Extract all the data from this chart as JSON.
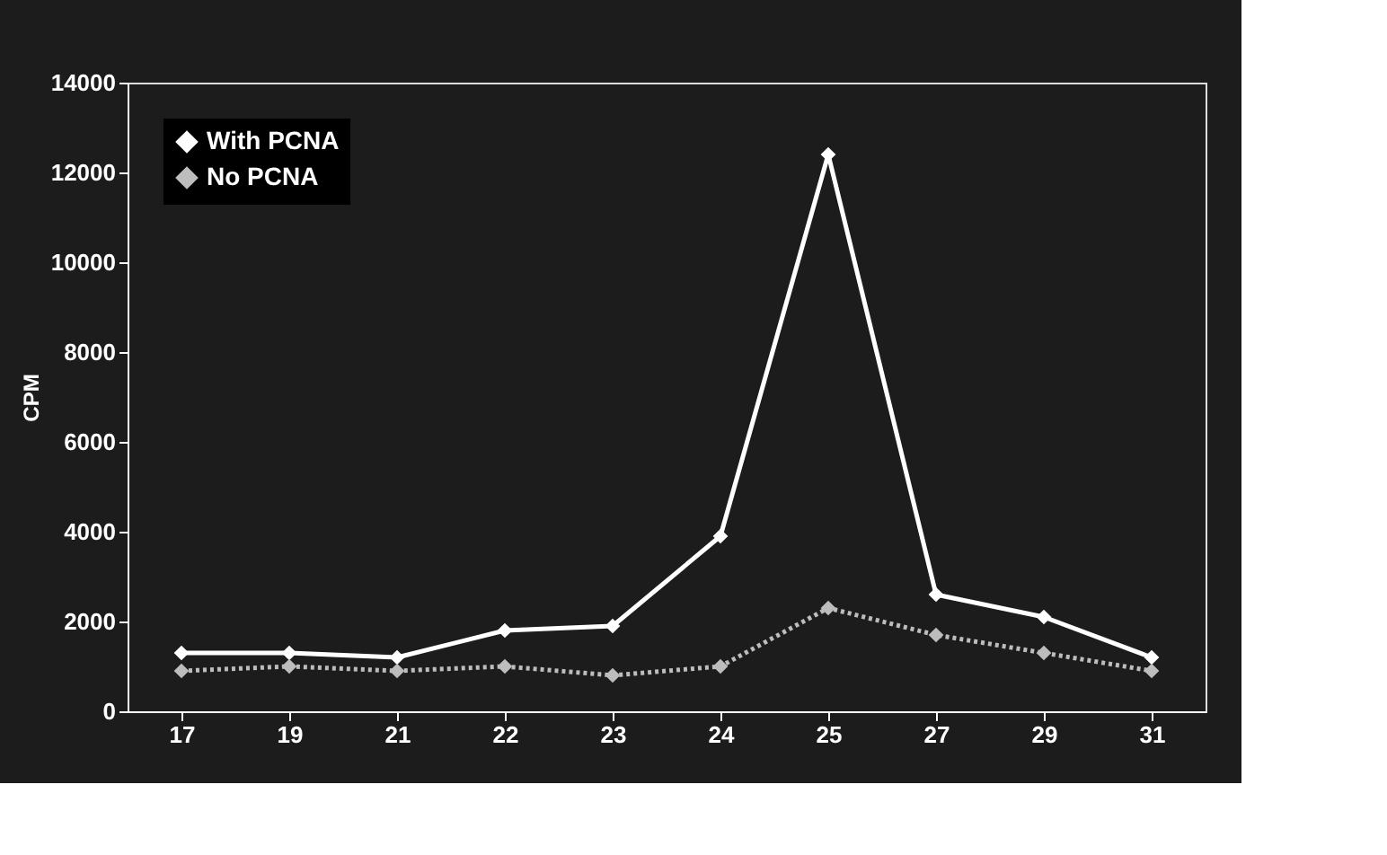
{
  "chart_data": {
    "type": "line",
    "ylabel": "CPM",
    "categories": [
      "17",
      "19",
      "21",
      "22",
      "23",
      "24",
      "25",
      "27",
      "29",
      "31"
    ],
    "series": [
      {
        "name": "With PCNA",
        "color": "#ffffff",
        "line_style": "solid",
        "values": [
          1300,
          1300,
          1200,
          1800,
          1900,
          3900,
          12400,
          2600,
          2100,
          1200
        ]
      },
      {
        "name": "No PCNA",
        "color": "#bdbdbd",
        "line_style": "dotted",
        "values": [
          900,
          1000,
          900,
          1000,
          800,
          1000,
          2300,
          1700,
          1300,
          900
        ]
      }
    ],
    "ylim": [
      0,
      14000
    ],
    "yticks": [
      0,
      2000,
      4000,
      6000,
      8000,
      10000,
      12000,
      14000
    ],
    "marker": "diamond",
    "legend": "top left",
    "grid": false
  }
}
